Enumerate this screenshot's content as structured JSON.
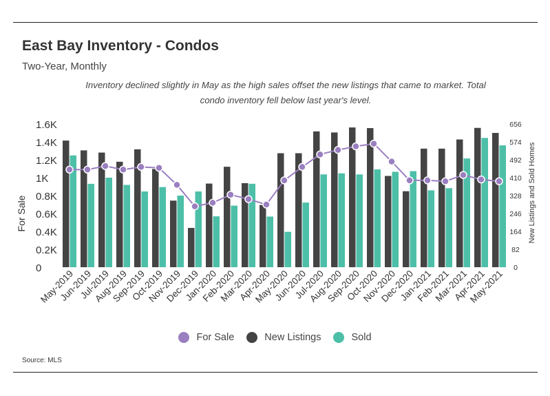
{
  "title": "East Bay Inventory - Condos",
  "subtitle": "Two-Year, Monthly",
  "caption": "Inventory declined slightly in May as the high sales offset the new listings that came to market.  Total condo inventory fell below last year's level.",
  "source": "Source:  MLS",
  "colors": {
    "for_sale": "#9a7fc0",
    "new_listings": "#444444",
    "sold": "#4dbfa8"
  },
  "chart_data": {
    "type": "bar",
    "categories": [
      "May-2019",
      "Jun-2019",
      "Jul-2019",
      "Aug-2019",
      "Sep-2019",
      "Oct-2019",
      "Nov-2019",
      "Dec-2019",
      "Jan-2020",
      "Feb-2020",
      "Mar-2020",
      "Apr-2020",
      "May-2020",
      "Jun-2020",
      "Jul-2020",
      "Aug-2020",
      "Sep-2020",
      "Oct-2020",
      "Nov-2020",
      "Dec-2020",
      "Jan-2021",
      "Feb-2021",
      "Mar-2021",
      "Apr-2021",
      "May-2021"
    ],
    "left_axis": {
      "label": "For Sale",
      "ticks": [
        "0",
        "0.2K",
        "0.4K",
        "0.6K",
        "0.8K",
        "1K",
        "1.2K",
        "1.4K",
        "1.6K"
      ],
      "ylim": [
        0,
        1600
      ]
    },
    "right_axis": {
      "label": "New Listings and Sold Homes",
      "ticks": [
        "0",
        "82",
        "164",
        "246",
        "328",
        "410",
        "492",
        "574",
        "656"
      ],
      "ylim": [
        0,
        656
      ]
    },
    "series": [
      {
        "name": "For Sale",
        "type": "line",
        "axis": "left",
        "values": [
          1090,
          1090,
          1130,
          1090,
          1120,
          1110,
          920,
          680,
          720,
          810,
          760,
          700,
          970,
          1120,
          1260,
          1310,
          1350,
          1380,
          1180,
          970,
          970,
          960,
          1030,
          980,
          960
        ]
      },
      {
        "name": "New Listings",
        "type": "bar",
        "axis": "right",
        "values": [
          580,
          535,
          525,
          483,
          540,
          450,
          305,
          180,
          383,
          460,
          385,
          285,
          522,
          522,
          622,
          617,
          640,
          637,
          418,
          348,
          543,
          543,
          585,
          638,
          615
        ]
      },
      {
        "name": "Sold",
        "type": "bar",
        "axis": "right",
        "values": [
          512,
          382,
          410,
          377,
          347,
          367,
          328,
          347,
          233,
          282,
          382,
          232,
          162,
          296,
          425,
          430,
          425,
          448,
          437,
          440,
          352,
          362,
          498,
          592,
          558
        ]
      }
    ],
    "grid": false,
    "legend_position": "bottom"
  }
}
